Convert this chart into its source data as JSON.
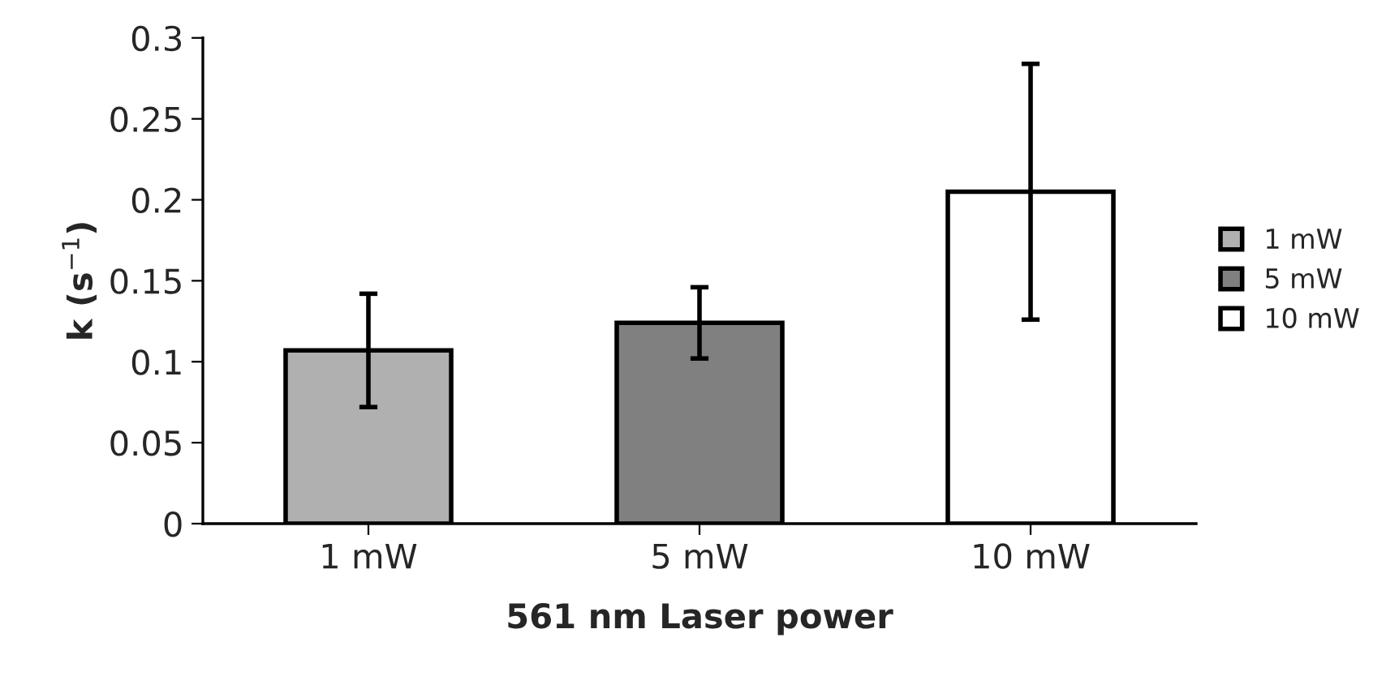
{
  "chart_data": {
    "type": "bar",
    "categories": [
      "1 mW",
      "5 mW",
      "10 mW"
    ],
    "series": [
      {
        "name": "1 mW",
        "color": "#b0b0b0",
        "values": [
          0.107,
          null,
          null
        ],
        "errors": [
          [
            0.072,
            0.142
          ],
          null,
          null
        ]
      },
      {
        "name": "5 mW",
        "color": "#808080",
        "values": [
          null,
          0.124,
          null
        ],
        "errors": [
          null,
          [
            0.102,
            0.146
          ],
          null
        ]
      },
      {
        "name": "10 mW",
        "color": "#ffffff",
        "values": [
          null,
          null,
          0.205
        ],
        "errors": [
          null,
          null,
          [
            0.126,
            0.284
          ]
        ]
      }
    ],
    "xlabel": "561 nm Laser power",
    "ylabel": "k (s$^{−1}$)",
    "ylim": [
      0,
      0.3
    ],
    "yticks": [
      0,
      0.05,
      0.1,
      0.15,
      0.2,
      0.25,
      0.3
    ],
    "grid": false,
    "legend": "right"
  }
}
